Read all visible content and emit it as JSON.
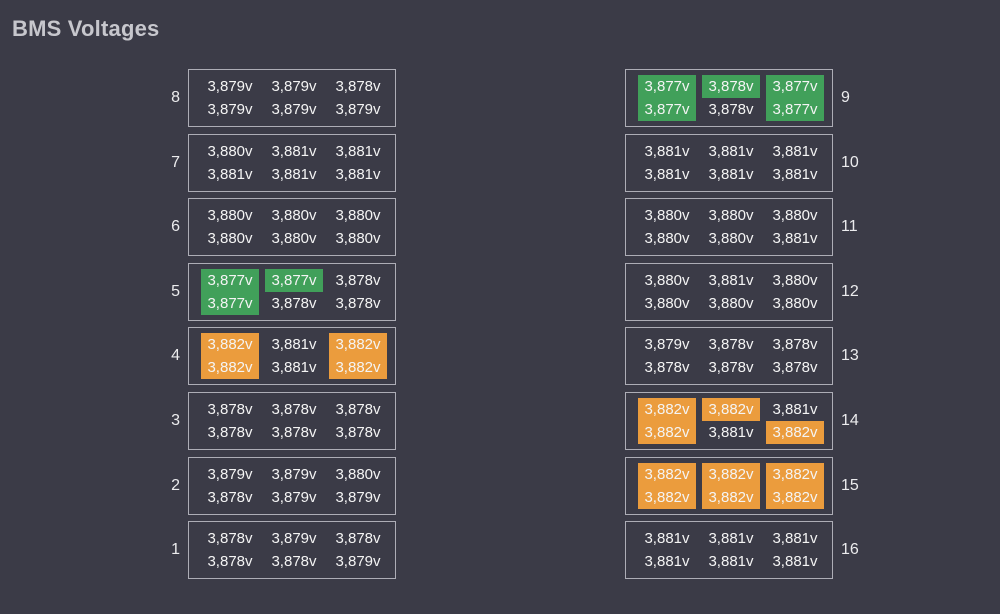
{
  "title": "BMS Voltages",
  "colors": {
    "background": "#3b3b47",
    "box_border": "#adadb6",
    "value_text": "#f4f4f4",
    "title_text": "#c7c7cd",
    "highlight_low_green": "#41a05a",
    "highlight_high_orange": "#eb9c3d"
  },
  "modules": [
    {
      "id": 8,
      "side": "left",
      "values": [
        [
          "3,879v",
          "3,879v",
          "3,878v"
        ],
        [
          "3,879v",
          "3,879v",
          "3,879v"
        ]
      ],
      "highlights": [
        [
          "",
          "",
          ""
        ],
        [
          "",
          "",
          ""
        ]
      ]
    },
    {
      "id": 7,
      "side": "left",
      "values": [
        [
          "3,880v",
          "3,881v",
          "3,881v"
        ],
        [
          "3,881v",
          "3,881v",
          "3,881v"
        ]
      ],
      "highlights": [
        [
          "",
          "",
          ""
        ],
        [
          "",
          "",
          ""
        ]
      ]
    },
    {
      "id": 6,
      "side": "left",
      "values": [
        [
          "3,880v",
          "3,880v",
          "3,880v"
        ],
        [
          "3,880v",
          "3,880v",
          "3,880v"
        ]
      ],
      "highlights": [
        [
          "",
          "",
          ""
        ],
        [
          "",
          "",
          ""
        ]
      ]
    },
    {
      "id": 5,
      "side": "left",
      "values": [
        [
          "3,877v",
          "3,877v",
          "3,878v"
        ],
        [
          "3,877v",
          "3,878v",
          "3,878v"
        ]
      ],
      "highlights": [
        [
          "green",
          "green",
          ""
        ],
        [
          "green",
          "",
          ""
        ]
      ]
    },
    {
      "id": 4,
      "side": "left",
      "values": [
        [
          "3,882v",
          "3,881v",
          "3,882v"
        ],
        [
          "3,882v",
          "3,881v",
          "3,882v"
        ]
      ],
      "highlights": [
        [
          "orange",
          "",
          "orange"
        ],
        [
          "orange",
          "",
          "orange"
        ]
      ]
    },
    {
      "id": 3,
      "side": "left",
      "values": [
        [
          "3,878v",
          "3,878v",
          "3,878v"
        ],
        [
          "3,878v",
          "3,878v",
          "3,878v"
        ]
      ],
      "highlights": [
        [
          "",
          "",
          ""
        ],
        [
          "",
          "",
          ""
        ]
      ]
    },
    {
      "id": 2,
      "side": "left",
      "values": [
        [
          "3,879v",
          "3,879v",
          "3,880v"
        ],
        [
          "3,878v",
          "3,879v",
          "3,879v"
        ]
      ],
      "highlights": [
        [
          "",
          "",
          ""
        ],
        [
          "",
          "",
          ""
        ]
      ]
    },
    {
      "id": 1,
      "side": "left",
      "values": [
        [
          "3,878v",
          "3,879v",
          "3,878v"
        ],
        [
          "3,878v",
          "3,878v",
          "3,879v"
        ]
      ],
      "highlights": [
        [
          "",
          "",
          ""
        ],
        [
          "",
          "",
          ""
        ]
      ]
    },
    {
      "id": 9,
      "side": "right",
      "values": [
        [
          "3,877v",
          "3,878v",
          "3,877v"
        ],
        [
          "3,877v",
          "3,878v",
          "3,877v"
        ]
      ],
      "highlights": [
        [
          "green",
          "green",
          "green"
        ],
        [
          "green",
          "",
          "green"
        ]
      ]
    },
    {
      "id": 10,
      "side": "right",
      "values": [
        [
          "3,881v",
          "3,881v",
          "3,881v"
        ],
        [
          "3,881v",
          "3,881v",
          "3,881v"
        ]
      ],
      "highlights": [
        [
          "",
          "",
          ""
        ],
        [
          "",
          "",
          ""
        ]
      ]
    },
    {
      "id": 11,
      "side": "right",
      "values": [
        [
          "3,880v",
          "3,880v",
          "3,880v"
        ],
        [
          "3,880v",
          "3,880v",
          "3,881v"
        ]
      ],
      "highlights": [
        [
          "",
          "",
          ""
        ],
        [
          "",
          "",
          ""
        ]
      ]
    },
    {
      "id": 12,
      "side": "right",
      "values": [
        [
          "3,880v",
          "3,881v",
          "3,880v"
        ],
        [
          "3,880v",
          "3,880v",
          "3,880v"
        ]
      ],
      "highlights": [
        [
          "",
          "",
          ""
        ],
        [
          "",
          "",
          ""
        ]
      ]
    },
    {
      "id": 13,
      "side": "right",
      "values": [
        [
          "3,879v",
          "3,878v",
          "3,878v"
        ],
        [
          "3,878v",
          "3,878v",
          "3,878v"
        ]
      ],
      "highlights": [
        [
          "",
          "",
          ""
        ],
        [
          "",
          "",
          ""
        ]
      ]
    },
    {
      "id": 14,
      "side": "right",
      "values": [
        [
          "3,882v",
          "3,882v",
          "3,881v"
        ],
        [
          "3,882v",
          "3,881v",
          "3,882v"
        ]
      ],
      "highlights": [
        [
          "orange",
          "orange",
          ""
        ],
        [
          "orange",
          "",
          "orange"
        ]
      ]
    },
    {
      "id": 15,
      "side": "right",
      "values": [
        [
          "3,882v",
          "3,882v",
          "3,882v"
        ],
        [
          "3,882v",
          "3,882v",
          "3,882v"
        ]
      ],
      "highlights": [
        [
          "orange",
          "orange",
          "orange"
        ],
        [
          "orange",
          "orange",
          "orange"
        ]
      ]
    },
    {
      "id": 16,
      "side": "right",
      "values": [
        [
          "3,881v",
          "3,881v",
          "3,881v"
        ],
        [
          "3,881v",
          "3,881v",
          "3,881v"
        ]
      ],
      "highlights": [
        [
          "",
          "",
          ""
        ],
        [
          "",
          "",
          ""
        ]
      ]
    }
  ]
}
